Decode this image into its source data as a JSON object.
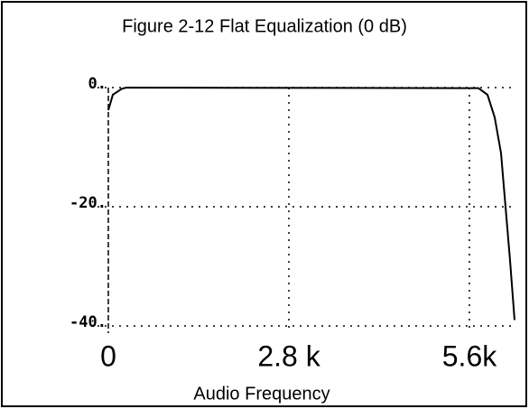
{
  "chart_data": {
    "type": "line",
    "title": "Figure 2-12 Flat Equalization (0 dB)",
    "x_label": "Audio Frequency",
    "x": [
      0,
      70,
      210,
      280,
      5740,
      5880,
      5992,
      6090,
      6160,
      6230,
      6300
    ],
    "values": [
      -3.8,
      -1.2,
      -0.2,
      0,
      -0.1,
      -1.2,
      -5,
      -11,
      -20,
      -29,
      -39
    ],
    "color": "#000000",
    "xlim": [
      0,
      6300
    ],
    "ylim": [
      -40,
      0
    ],
    "xticks": [
      0,
      {
        "value": 2800,
        "label": "2.8 k"
      },
      {
        "value": 5600,
        "label": "5.6k"
      }
    ],
    "yticks": [
      {
        "value": 0,
        "label": "0."
      },
      {
        "value": -20,
        "label": "-20."
      },
      {
        "value": -40,
        "label": "-40."
      }
    ],
    "grid": true
  }
}
